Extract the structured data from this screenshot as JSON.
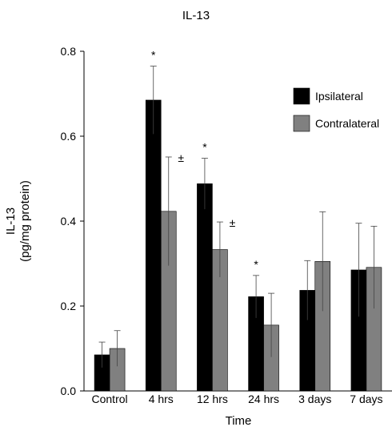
{
  "chart_data": {
    "type": "bar",
    "title": "IL-13",
    "xlabel": "Time",
    "ylabel_lines": [
      "IL-13",
      "(pg/mg protein)"
    ],
    "categories": [
      "Control",
      "4 hrs",
      "12 hrs",
      "24 hrs",
      "3 days",
      "7 days"
    ],
    "ylim": [
      0,
      0.8
    ],
    "yticks": [
      "0.0",
      "0.2",
      "0.4",
      "0.6",
      "0.8"
    ],
    "grid": false,
    "legend_position": "top-right",
    "series": [
      {
        "name": "Ipsilateral",
        "color": "#000000",
        "values": [
          0.085,
          0.685,
          0.488,
          0.222,
          0.237,
          0.285
        ],
        "errors": [
          0.03,
          0.08,
          0.06,
          0.05,
          0.07,
          0.11
        ],
        "annotations": [
          "",
          "*",
          "*",
          "*",
          "",
          ""
        ]
      },
      {
        "name": "Contralateral",
        "color": "#808080",
        "values": [
          0.1,
          0.423,
          0.333,
          0.155,
          0.305,
          0.291
        ],
        "errors": [
          0.042,
          0.128,
          0.065,
          0.075,
          0.117,
          0.097
        ],
        "annotations": [
          "",
          "±",
          "±",
          "",
          "",
          ""
        ]
      }
    ]
  }
}
